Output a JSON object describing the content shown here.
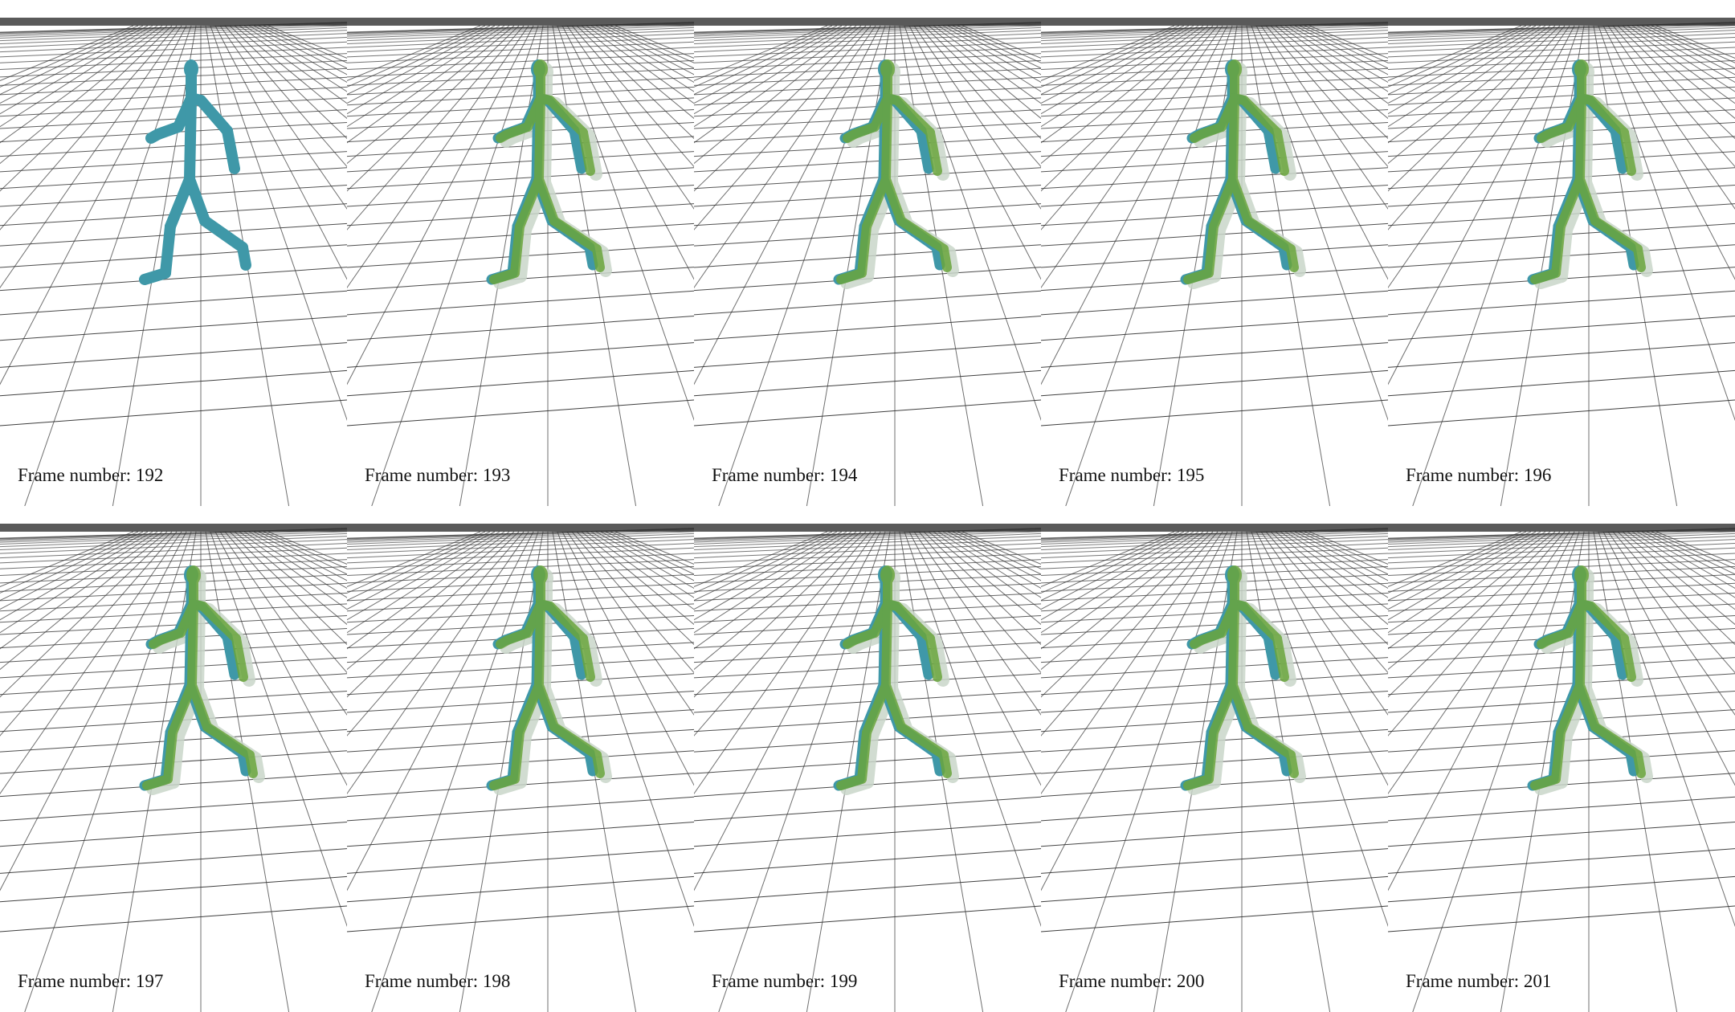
{
  "figure": {
    "label_prefix": "Frame number: ",
    "frames": [
      {
        "frame_number": 192,
        "label": "Frame number: 192",
        "skeletons": [
          "ground-truth"
        ]
      },
      {
        "frame_number": 193,
        "label": "Frame number: 193",
        "skeletons": [
          "ground-truth",
          "prediction"
        ]
      },
      {
        "frame_number": 194,
        "label": "Frame number: 194",
        "skeletons": [
          "ground-truth",
          "prediction"
        ]
      },
      {
        "frame_number": 195,
        "label": "Frame number: 195",
        "skeletons": [
          "ground-truth",
          "prediction"
        ]
      },
      {
        "frame_number": 196,
        "label": "Frame number: 196",
        "skeletons": [
          "ground-truth",
          "prediction"
        ]
      },
      {
        "frame_number": 197,
        "label": "Frame number: 197",
        "skeletons": [
          "ground-truth",
          "prediction"
        ]
      },
      {
        "frame_number": 198,
        "label": "Frame number: 198",
        "skeletons": [
          "ground-truth",
          "prediction"
        ]
      },
      {
        "frame_number": 199,
        "label": "Frame number: 199",
        "skeletons": [
          "ground-truth",
          "prediction"
        ]
      },
      {
        "frame_number": 200,
        "label": "Frame number: 200",
        "skeletons": [
          "ground-truth",
          "prediction"
        ]
      },
      {
        "frame_number": 201,
        "label": "Frame number: 201",
        "skeletons": [
          "ground-truth",
          "prediction"
        ]
      }
    ]
  },
  "colors": {
    "skeleton_teal": "#3f98a8",
    "skeleton_green": "#6aa53d",
    "ghost": "#c9d6c9",
    "floor_line": "#333333",
    "horizon_band": "#5a5a5a",
    "background": "#ffffff",
    "label_text": "#111111"
  }
}
